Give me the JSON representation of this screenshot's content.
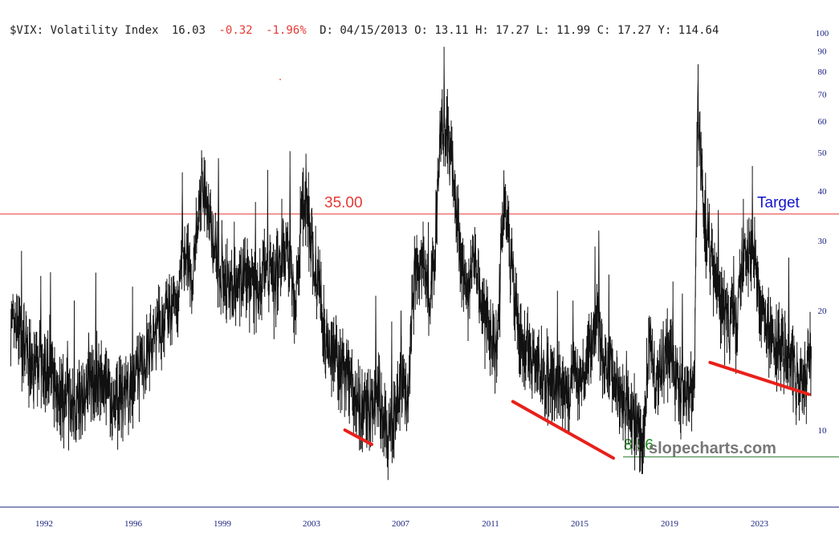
{
  "header": {
    "symbol_name": "$VIX: Volatility Index",
    "last": "16.03",
    "change": "-0.32",
    "change_pct": "-1.96%",
    "ohlc": "D: 04/15/2013 O: 13.11 H: 17.27 L: 11.99 C: 17.27 Y: 114.64",
    "neg_color": "#e53935"
  },
  "watermark": "slopecharts.com",
  "chart_data": {
    "type": "line",
    "title": "$VIX: Volatility Index",
    "y_scale": "log",
    "ylim": [
      7,
      100
    ],
    "xlim": [
      1990.5,
      2027.5
    ],
    "y_ticks": [
      10,
      20,
      30,
      40,
      50,
      60,
      70,
      80,
      90,
      100
    ],
    "x_ticks": [
      1992,
      1996,
      1999,
      2003,
      2007,
      2011,
      2015,
      2019,
      2023
    ],
    "series": [
      {
        "type": "line",
        "color": "#111111",
        "x": [
          1990.5,
          1991,
          1991.5,
          1992,
          1992.5,
          1993,
          1993.5,
          1994,
          1994.5,
          1995,
          1995.5,
          1996,
          1996.5,
          1997,
          1997.5,
          1997.8,
          1998,
          1998.3,
          1998.7,
          1999,
          1999.5,
          2000,
          2000.5,
          2001,
          2001.3,
          2001.7,
          2002,
          2002.3,
          2002.6,
          2002.9,
          2003.2,
          2003.6,
          2004,
          2004.5,
          2005,
          2005.5,
          2006,
          2006.4,
          2006.8,
          2007,
          2007.3,
          2007.6,
          2008,
          2008.3,
          2008.5,
          2008.8,
          2009,
          2009.3,
          2009.6,
          2010,
          2010.3,
          2010.6,
          2011,
          2011.3,
          2011.6,
          2011.9,
          2012.3,
          2012.7,
          2013,
          2013.5,
          2014,
          2014.5,
          2014.8,
          2015,
          2015.5,
          2015.8,
          2016,
          2016.5,
          2016.9,
          2017.2,
          2017.5,
          2017.8,
          2018.1,
          2018.4,
          2018.8,
          2019.1,
          2019.4,
          2019.8,
          2020.0,
          2020.1,
          2020.25,
          2020.5,
          2020.8,
          2021.2,
          2021.6,
          2022,
          2022.3,
          2022.6,
          2023,
          2023.5,
          2024,
          2024.4,
          2024.8,
          2025.1,
          2025.3
        ],
        "values": [
          18,
          17,
          14,
          15,
          13,
          12,
          11,
          13,
          14,
          12,
          12,
          13,
          16,
          19,
          21,
          28,
          24,
          42,
          30,
          24,
          23,
          25,
          22,
          27,
          23,
          30,
          28,
          20,
          40,
          32,
          26,
          18,
          15,
          14,
          12,
          11,
          12,
          10,
          11,
          14,
          12,
          24,
          26,
          20,
          28,
          60,
          55,
          45,
          30,
          22,
          28,
          20,
          18,
          16,
          40,
          27,
          17,
          16,
          15,
          14,
          13,
          12,
          14,
          13,
          16,
          20,
          15,
          14,
          12,
          11,
          10,
          9,
          18,
          13,
          16,
          15,
          13,
          12,
          13,
          12,
          70,
          35,
          28,
          22,
          18,
          19,
          30,
          28,
          21,
          18,
          16,
          15,
          13,
          14,
          16
        ]
      }
    ],
    "levels": [
      {
        "value": 35.0,
        "label": "35.00",
        "tag": "Target",
        "line_color": "#e53935",
        "label_color": "#e53935",
        "tag_color": "#1515cc"
      },
      {
        "value": 8.56,
        "label": "8.56",
        "line_color": "#2e7d32",
        "label_color": "#1e8a1e"
      }
    ],
    "trendlines": [
      {
        "x": [
          2004.5,
          2005.7
        ],
        "y": [
          10.0,
          9.2
        ],
        "color": "#e8201a"
      },
      {
        "x": [
          2012.0,
          2016.5
        ],
        "y": [
          11.8,
          8.5
        ],
        "color": "#e8201a"
      },
      {
        "x": [
          2020.8,
          2025.2
        ],
        "y": [
          14.8,
          12.3
        ],
        "color": "#e8201a"
      }
    ]
  }
}
